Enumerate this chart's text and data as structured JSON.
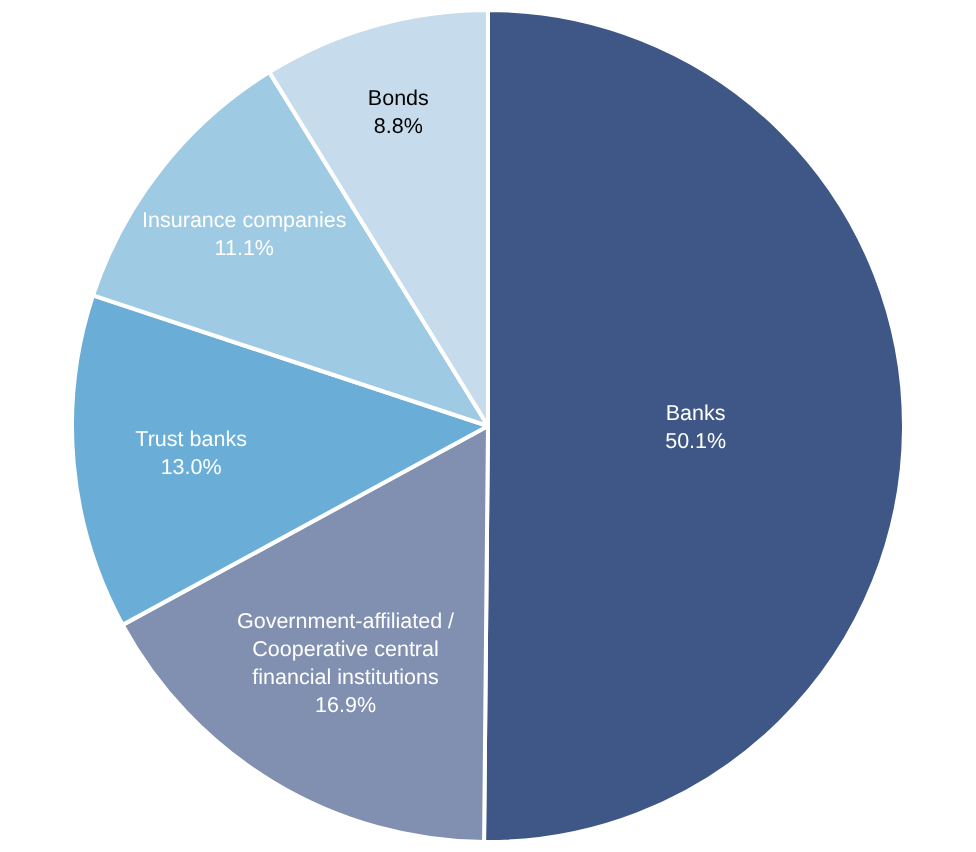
{
  "chart_data": {
    "type": "pie",
    "categories": [
      "Banks",
      "Government-affiliated /\nCooperative central\nfinancial institutions",
      "Trust banks",
      "Insurance companies",
      "Bonds"
    ],
    "values": [
      50.1,
      16.9,
      13.0,
      11.1,
      8.8
    ],
    "value_labels": [
      "50.1%",
      "16.9%",
      "13.0%",
      "11.1%",
      "8.8%"
    ],
    "colors": [
      "#3f5787",
      "#8190b0",
      "#6aaed8",
      "#9ecae4",
      "#c6dcec"
    ],
    "legend": false
  }
}
